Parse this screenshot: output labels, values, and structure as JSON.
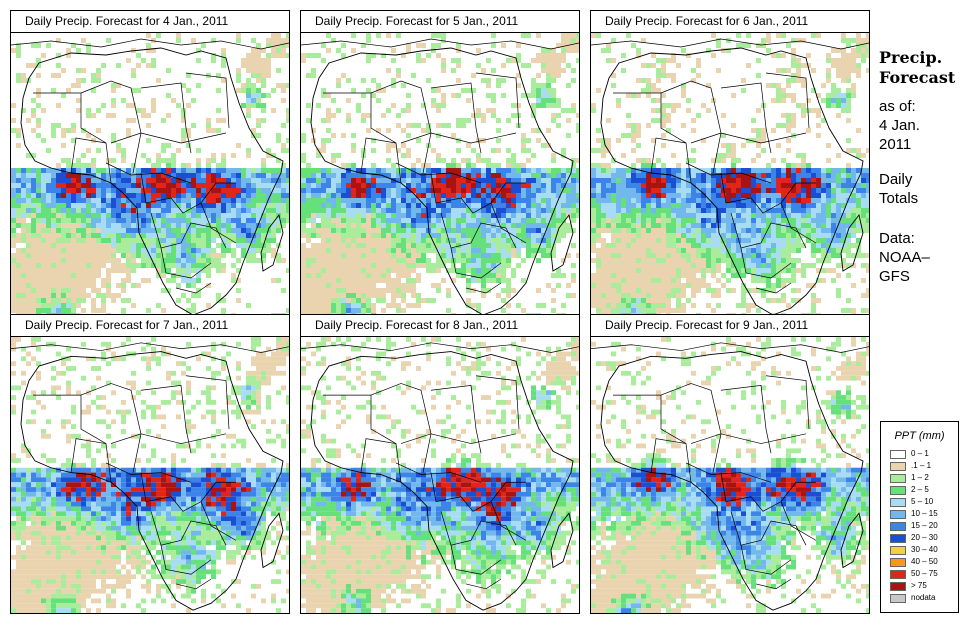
{
  "panels": [
    {
      "title": "Daily Precip. Forecast for  4 Jan., 2011",
      "seed": 11,
      "shift": 0
    },
    {
      "title": "Daily Precip. Forecast for  5 Jan., 2011",
      "seed": 23,
      "shift": 6
    },
    {
      "title": "Daily Precip. Forecast for  6 Jan., 2011",
      "seed": 37,
      "shift": 12
    },
    {
      "title": "Daily Precip. Forecast for  7 Jan., 2011",
      "seed": 41,
      "shift": 18
    },
    {
      "title": "Daily Precip. Forecast for  8 Jan., 2011",
      "seed": 53,
      "shift": 24
    },
    {
      "title": "Daily Precip. Forecast for  9 Jan., 2011",
      "seed": 67,
      "shift": 30
    }
  ],
  "sidebar": {
    "title_line1": "Precip.",
    "title_line2": "Forecast",
    "asof": "as of:",
    "date_line1": "4 Jan.",
    "date_line2": "2011",
    "daily_line1": "Daily",
    "daily_line2": "Totals",
    "data_line1": "Data:",
    "data_line2": "NOAA–",
    "data_line3": "GFS"
  },
  "legend": {
    "title": "PPT (mm)",
    "items": [
      {
        "label": "0 – 1",
        "color": "#ffffff"
      },
      {
        "label": ".1 – 1",
        "color": "#ead4b0"
      },
      {
        "label": "1 – 2",
        "color": "#a8ec9c"
      },
      {
        "label": "2 – 5",
        "color": "#66e07a"
      },
      {
        "label": "5 – 10",
        "color": "#a8dcf2"
      },
      {
        "label": "10 – 15",
        "color": "#72b8ec"
      },
      {
        "label": "15 – 20",
        "color": "#3c84e8"
      },
      {
        "label": "20 – 30",
        "color": "#1a4fd4"
      },
      {
        "label": "30 – 40",
        "color": "#f2d23c"
      },
      {
        "label": "40 – 50",
        "color": "#f29a1a"
      },
      {
        "label": "50 – 75",
        "color": "#e0261a"
      },
      {
        "label": "> 75",
        "color": "#a81414"
      },
      {
        "label": "nodata",
        "color": "#c8c8c8"
      }
    ]
  }
}
